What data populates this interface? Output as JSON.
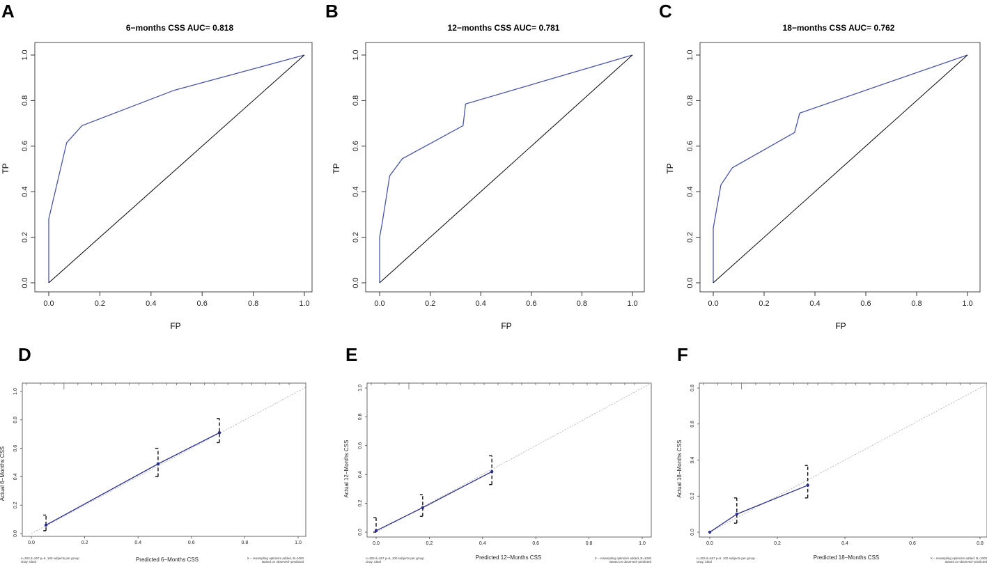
{
  "colors": {
    "curve": "#4a56a6",
    "reference": "#000000",
    "frame": "#444444",
    "ideal": "#b0b0b0",
    "calibration": "#2b2f8a"
  },
  "chart_data": [
    {
      "id": "A",
      "type": "line",
      "panel_label": "A",
      "title": "6−months CSS AUC= 0.818",
      "xlabel": "FP",
      "ylabel": "TP",
      "xlim": [
        0,
        1
      ],
      "ylim": [
        0,
        1
      ],
      "ticks": [
        "0.0",
        "0.2",
        "0.4",
        "0.6",
        "0.8",
        "1.0"
      ],
      "tick_values": [
        0,
        0.2,
        0.4,
        0.6,
        0.8,
        1.0
      ],
      "series": [
        {
          "name": "ROC",
          "x": [
            0,
            0,
            0.07,
            0.13,
            0.49,
            1.0
          ],
          "y": [
            0,
            0.28,
            0.615,
            0.69,
            0.845,
            1.0
          ]
        },
        {
          "name": "Reference",
          "x": [
            0,
            1
          ],
          "y": [
            0,
            1
          ]
        }
      ]
    },
    {
      "id": "B",
      "type": "line",
      "panel_label": "B",
      "title": "12−months CSS AUC= 0.781",
      "xlabel": "FP",
      "ylabel": "TP",
      "xlim": [
        0,
        1
      ],
      "ylim": [
        0,
        1
      ],
      "ticks": [
        "0.0",
        "0.2",
        "0.4",
        "0.6",
        "0.8",
        "1.0"
      ],
      "tick_values": [
        0,
        0.2,
        0.4,
        0.6,
        0.8,
        1.0
      ],
      "series": [
        {
          "name": "ROC",
          "x": [
            0,
            0,
            0.01,
            0.04,
            0.09,
            0.33,
            0.34,
            1.0
          ],
          "y": [
            0,
            0.2,
            0.26,
            0.47,
            0.545,
            0.69,
            0.785,
            1.0
          ]
        },
        {
          "name": "Reference",
          "x": [
            0,
            1
          ],
          "y": [
            0,
            1
          ]
        }
      ]
    },
    {
      "id": "C",
      "type": "line",
      "panel_label": "C",
      "title": "18−months CSS AUC= 0.762",
      "xlabel": "FP",
      "ylabel": "TP",
      "xlim": [
        0,
        1
      ],
      "ylim": [
        0,
        1
      ],
      "ticks": [
        "0.0",
        "0.2",
        "0.4",
        "0.6",
        "0.8",
        "1.0"
      ],
      "tick_values": [
        0,
        0.2,
        0.4,
        0.6,
        0.8,
        1.0
      ],
      "series": [
        {
          "name": "ROC",
          "x": [
            0,
            0,
            0.03,
            0.075,
            0.32,
            0.34,
            1.0
          ],
          "y": [
            0,
            0.24,
            0.43,
            0.505,
            0.66,
            0.745,
            1.0
          ]
        },
        {
          "name": "Reference",
          "x": [
            0,
            1
          ],
          "y": [
            0,
            1
          ]
        }
      ]
    },
    {
      "id": "D",
      "type": "line",
      "panel_label": "D",
      "title": "",
      "xlabel": "Predicted 6−Months CSS",
      "ylabel": "Actual 6−Months CSS",
      "xlim": [
        0,
        1
      ],
      "ylim": [
        0,
        1
      ],
      "x_ticks": [
        "0.0",
        "0.2",
        "0.4",
        "0.6",
        "0.8",
        "1.0"
      ],
      "x_tick_values": [
        0,
        0.2,
        0.4,
        0.6,
        0.8,
        1.0
      ],
      "y_ticks": [
        "0.0",
        "0.2",
        "0.4",
        "0.6",
        "0.8",
        "1.0"
      ],
      "y_tick_values": [
        0,
        0.2,
        0.4,
        0.6,
        0.8,
        1.0
      ],
      "points": {
        "x": [
          0.055,
          0.475,
          0.705
        ],
        "y": [
          0.06,
          0.49,
          0.71
        ]
      },
      "error_bars": {
        "low": [
          0.02,
          0.4,
          0.64
        ],
        "high": [
          0.13,
          0.6,
          0.81
        ]
      },
      "footnote_left": [
        "n=303 d=267 p=6, 100 subjects per group",
        "Gray: ideal"
      ],
      "footnote_right": [
        "X − resampling optimism added, B=1000",
        "Based on observed−predicted"
      ]
    },
    {
      "id": "E",
      "type": "line",
      "panel_label": "E",
      "title": "",
      "xlabel": "Predicted 12−Months CSS",
      "ylabel": "Actual 12−Months CSS",
      "xlim": [
        0,
        1
      ],
      "ylim": [
        0,
        1
      ],
      "x_ticks": [
        "0.0",
        "0.2",
        "0.4",
        "0.6",
        "0.8",
        "1.0"
      ],
      "x_tick_values": [
        0,
        0.2,
        0.4,
        0.6,
        0.8,
        1.0
      ],
      "y_ticks": [
        "0.0",
        "0.2",
        "0.4",
        "0.6",
        "0.8",
        "1.0"
      ],
      "y_tick_values": [
        0,
        0.2,
        0.4,
        0.6,
        0.8,
        1.0
      ],
      "points": {
        "x": [
          0,
          0.175,
          0.435
        ],
        "y": [
          0.01,
          0.17,
          0.42
        ]
      },
      "error_bars": {
        "low": [
          0,
          0.11,
          0.33
        ],
        "high": [
          0.1,
          0.26,
          0.53
        ]
      },
      "footnote_left": [
        "n=303 d=267 p=6, 100 subjects per group",
        "Gray: ideal"
      ],
      "footnote_right": [
        "X − resampling optimism added, B=1000",
        "Based on observed−predicted"
      ]
    },
    {
      "id": "F",
      "type": "line",
      "panel_label": "F",
      "title": "",
      "xlabel": "Predicted 18−Months CSS",
      "ylabel": "Actual 18−Months CSS",
      "xlim": [
        0,
        0.8
      ],
      "ylim": [
        0,
        0.8
      ],
      "x_ticks": [
        "0.0",
        "0.2",
        "0.4",
        "0.6",
        "0.8"
      ],
      "x_tick_values": [
        0,
        0.2,
        0.4,
        0.6,
        0.8
      ],
      "y_ticks": [
        "0.0",
        "0.2",
        "0.4",
        "0.6",
        "0.8"
      ],
      "y_tick_values": [
        0,
        0.2,
        0.4,
        0.6,
        0.8
      ],
      "points": {
        "x": [
          0,
          0.08,
          0.29
        ],
        "y": [
          0,
          0.1,
          0.26
        ]
      },
      "error_bars": {
        "low": [
          0,
          0.05,
          0.19
        ],
        "high": [
          0,
          0.19,
          0.37
        ]
      },
      "footnote_left": [
        "n=303 d=267 p=6, 100 subjects per group",
        "Gray: ideal"
      ],
      "footnote_right": [
        "X − resampling optimism added, B=1000",
        "Based on observed−predicted"
      ]
    }
  ]
}
